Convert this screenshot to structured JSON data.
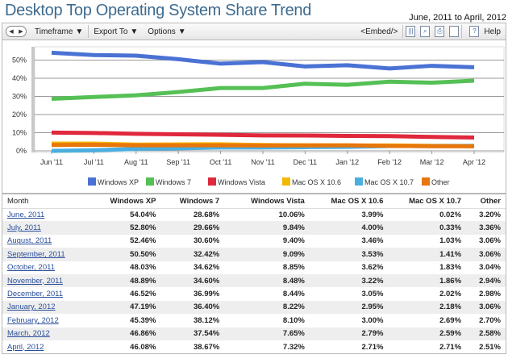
{
  "header": {
    "title": "Desktop Top Operating System Share Trend",
    "date_range": "June, 2011 to April, 2012"
  },
  "toolbar": {
    "timeframe": "Timeframe",
    "export": "Export To",
    "options": "Options",
    "embed": "<Embed/>",
    "help": "Help"
  },
  "chart_data": {
    "type": "line",
    "title": "Desktop Top Operating System Share Trend",
    "x": [
      "Jun '11",
      "Jul '11",
      "Aug '11",
      "Sep '11",
      "Oct '11",
      "Nov '11",
      "Dec '11",
      "Jan '12",
      "Feb '12",
      "Mar '12",
      "Apr '12"
    ],
    "ylim": [
      0,
      55
    ],
    "yticks": [
      "0%",
      "10%",
      "20%",
      "30%",
      "40%",
      "50%"
    ],
    "ytick_values": [
      0,
      10,
      20,
      30,
      40,
      50
    ],
    "legend_position": "bottom",
    "series": [
      {
        "name": "Windows XP",
        "color": "#4a72d4",
        "values": [
          54.04,
          52.8,
          52.46,
          50.5,
          48.03,
          48.89,
          46.52,
          47.19,
          45.39,
          46.86,
          46.08
        ]
      },
      {
        "name": "Windows 7",
        "color": "#55c055",
        "values": [
          28.68,
          29.66,
          30.6,
          32.42,
          34.62,
          34.6,
          36.99,
          36.4,
          38.12,
          37.54,
          38.67
        ]
      },
      {
        "name": "Windows Vista",
        "color": "#e0283c",
        "values": [
          10.06,
          9.84,
          9.4,
          9.09,
          8.85,
          8.48,
          8.44,
          8.22,
          8.1,
          7.65,
          7.32
        ]
      },
      {
        "name": "Mac OS X 10.6",
        "color": "#f5b800",
        "values": [
          3.99,
          4.0,
          3.46,
          3.53,
          3.62,
          3.22,
          3.05,
          2.95,
          3.0,
          2.79,
          2.71
        ]
      },
      {
        "name": "Mac OS X 10.7",
        "color": "#4aaee0",
        "values": [
          0.02,
          0.33,
          1.03,
          1.41,
          1.83,
          1.86,
          2.02,
          2.18,
          2.69,
          2.59,
          2.71
        ]
      },
      {
        "name": "Other",
        "color": "#e8760a",
        "values": [
          3.2,
          3.36,
          3.06,
          3.06,
          3.04,
          2.94,
          2.98,
          3.06,
          2.7,
          2.58,
          2.51
        ]
      }
    ]
  },
  "table": {
    "headers": [
      "Month",
      "Windows XP",
      "Windows 7",
      "Windows Vista",
      "Mac OS X 10.6",
      "Mac OS X 10.7",
      "Other"
    ],
    "rows": [
      [
        "June, 2011",
        "54.04%",
        "28.68%",
        "10.06%",
        "3.99%",
        "0.02%",
        "3.20%"
      ],
      [
        "July, 2011",
        "52.80%",
        "29.66%",
        "9.84%",
        "4.00%",
        "0.33%",
        "3.36%"
      ],
      [
        "August, 2011",
        "52.46%",
        "30.60%",
        "9.40%",
        "3.46%",
        "1.03%",
        "3.06%"
      ],
      [
        "September, 2011",
        "50.50%",
        "32.42%",
        "9.09%",
        "3.53%",
        "1.41%",
        "3.06%"
      ],
      [
        "October, 2011",
        "48.03%",
        "34.62%",
        "8.85%",
        "3.62%",
        "1.83%",
        "3.04%"
      ],
      [
        "November, 2011",
        "48.89%",
        "34.60%",
        "8.48%",
        "3.22%",
        "1.86%",
        "2.94%"
      ],
      [
        "December, 2011",
        "46.52%",
        "36.99%",
        "8.44%",
        "3.05%",
        "2.02%",
        "2.98%"
      ],
      [
        "January, 2012",
        "47.19%",
        "36.40%",
        "8.22%",
        "2.95%",
        "2.18%",
        "3.06%"
      ],
      [
        "February, 2012",
        "45.39%",
        "38.12%",
        "8.10%",
        "3.00%",
        "2.69%",
        "2.70%"
      ],
      [
        "March, 2012",
        "46.86%",
        "37.54%",
        "7.65%",
        "2.79%",
        "2.59%",
        "2.58%"
      ],
      [
        "April, 2012",
        "46.08%",
        "38.67%",
        "7.32%",
        "2.71%",
        "2.71%",
        "2.51%"
      ]
    ]
  }
}
